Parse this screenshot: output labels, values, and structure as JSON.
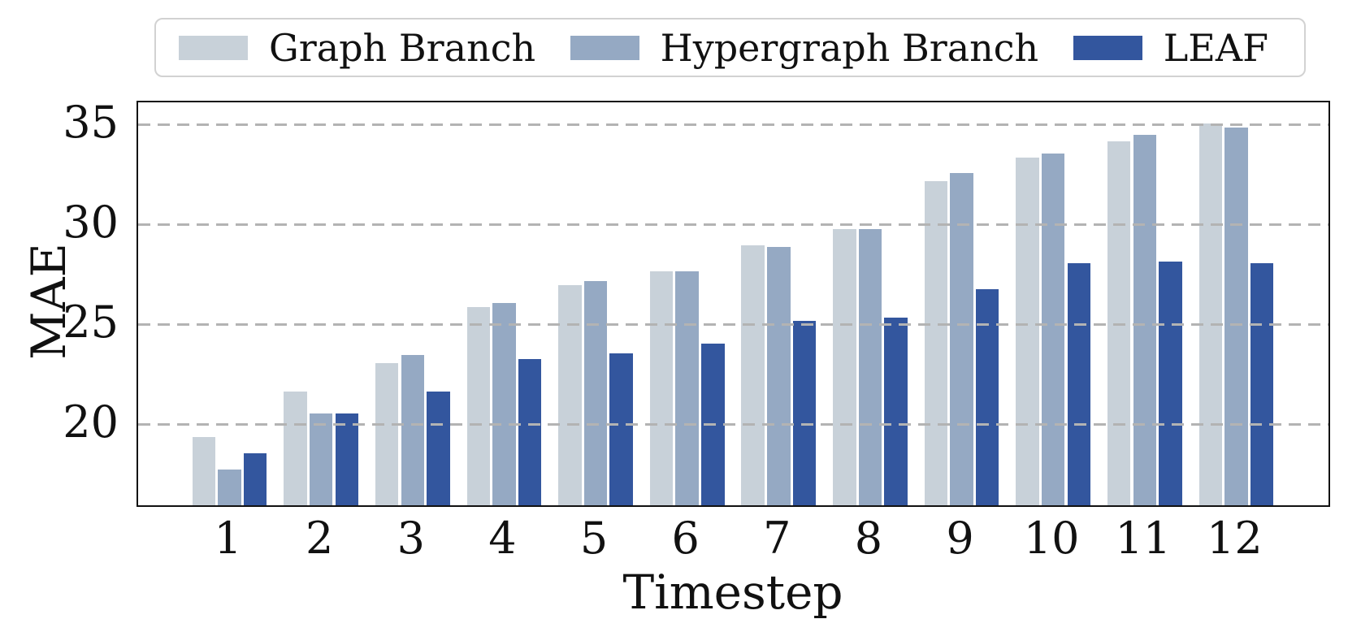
{
  "chart_data": {
    "type": "bar",
    "title": "",
    "xlabel": "Timestep",
    "ylabel": "MAE",
    "categories": [
      "1",
      "2",
      "3",
      "4",
      "5",
      "6",
      "7",
      "8",
      "9",
      "10",
      "11",
      "12"
    ],
    "series": [
      {
        "name": "Graph Branch",
        "color": "#c8d1d9",
        "values": [
          19.4,
          21.7,
          23.1,
          25.9,
          27.0,
          27.7,
          29.0,
          29.8,
          32.2,
          33.4,
          34.2,
          35.1
        ]
      },
      {
        "name": "Hypergraph Branch",
        "color": "#95a9c3",
        "values": [
          17.8,
          20.6,
          23.5,
          26.1,
          27.2,
          27.7,
          28.9,
          29.8,
          32.6,
          33.6,
          34.5,
          34.9
        ]
      },
      {
        "name": "LEAF",
        "color": "#33569e",
        "values": [
          18.6,
          20.6,
          21.7,
          23.3,
          23.6,
          24.1,
          25.2,
          25.4,
          26.8,
          28.1,
          28.2,
          28.1
        ]
      }
    ],
    "ylim": [
      16,
      36.1
    ],
    "yticks": [
      20,
      25,
      30,
      35
    ],
    "grid": "horizontal-dashed",
    "grid_color": "#b3b3b3",
    "legend_position": "top",
    "axis_color": "#111111"
  }
}
